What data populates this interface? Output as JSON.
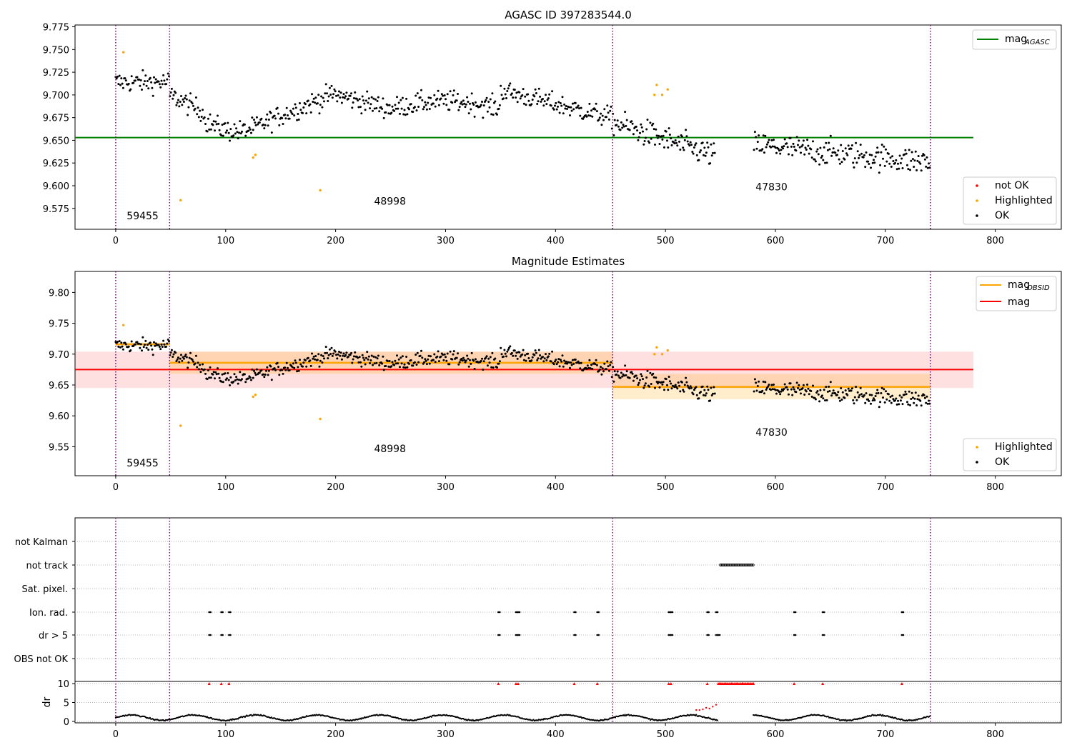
{
  "figure": {
    "title_top": "AGASC ID 397283544.0",
    "title_mid": "Magnitude Estimates"
  },
  "colors": {
    "ok": "#000000",
    "highlighted": "#ffa500",
    "not_ok": "#ff0000",
    "mag_agasc": "#008000",
    "mag": "#ff0000",
    "mag_obsid": "#ffa500",
    "obs_boundary": "#800080",
    "grid": "#b0b0b0"
  },
  "chart_data": [
    {
      "type": "scatter",
      "title": "AGASC ID 397283544.0",
      "xlim": [
        -37,
        860
      ],
      "ylim": [
        9.552,
        9.777
      ],
      "xticks": [
        "0",
        "100",
        "200",
        "300",
        "400",
        "500",
        "600",
        "700",
        "800"
      ],
      "yticks": [
        "9.575",
        "9.600",
        "9.625",
        "9.650",
        "9.675",
        "9.700",
        "9.725",
        "9.750",
        "9.775"
      ],
      "obs_boundaries": [
        0,
        49,
        452,
        741
      ],
      "obsid_labels": [
        {
          "text": "59455",
          "x": 10,
          "y": 9.563
        },
        {
          "text": "48998",
          "x": 235,
          "y": 9.579
        },
        {
          "text": "47830",
          "x": 582,
          "y": 9.595
        }
      ],
      "hlines": [
        {
          "name": "mag_AGASC",
          "y": 9.653,
          "x": [
            -37,
            780
          ]
        }
      ],
      "highlighted": [
        [
          7,
          9.747
        ],
        [
          59,
          9.584
        ],
        [
          125,
          9.631
        ],
        [
          127,
          9.634
        ],
        [
          186,
          9.595
        ],
        [
          490,
          9.7
        ],
        [
          492,
          9.711
        ],
        [
          497,
          9.7
        ],
        [
          502,
          9.706
        ]
      ],
      "legend_lines": [
        "mag",
        "AGASC"
      ],
      "legend_points": [
        "not OK",
        "Highlighted",
        "OK"
      ]
    },
    {
      "type": "scatter",
      "title": "Magnitude Estimates",
      "xlim": [
        -37,
        860
      ],
      "ylim": [
        9.503,
        9.834
      ],
      "xticks": [
        "0",
        "100",
        "200",
        "300",
        "400",
        "500",
        "600",
        "700",
        "800"
      ],
      "yticks": [
        "9.55",
        "9.60",
        "9.65",
        "9.70",
        "9.75",
        "9.80"
      ],
      "obs_boundaries": [
        0,
        49,
        452,
        741
      ],
      "obsid_labels": [
        {
          "text": "59455",
          "x": 10,
          "y": 9.518
        },
        {
          "text": "48998",
          "x": 235,
          "y": 9.541
        },
        {
          "text": "47830",
          "x": 582,
          "y": 9.568
        }
      ],
      "mag": {
        "value": 9.675,
        "band": [
          9.645,
          9.704
        ],
        "x": [
          -37,
          780
        ]
      },
      "mag_obsid": [
        {
          "x": [
            0,
            49
          ],
          "value": 9.716,
          "band": [
            9.713,
            9.719
          ]
        },
        {
          "x": [
            49,
            452
          ],
          "value": 9.686,
          "band": [
            9.668,
            9.704
          ]
        },
        {
          "x": [
            452,
            741
          ],
          "value": 9.647,
          "band": [
            9.627,
            9.668
          ]
        }
      ],
      "legend_lines": [
        "mag",
        "OBSID",
        "mag"
      ],
      "legend_points": [
        "Highlighted",
        "OK"
      ]
    },
    {
      "type": "scatter",
      "xlim": [
        -37,
        860
      ],
      "xticks": [
        "0",
        "100",
        "200",
        "300",
        "400",
        "500",
        "600",
        "700",
        "800"
      ],
      "flag_rows": [
        "not Kalman",
        "not track",
        "Sat. pixel.",
        "Ion. rad.",
        "dr > 5",
        "OBS not OK"
      ],
      "flags": {
        "not track": [
          [
            550,
            580
          ]
        ],
        "Ion. rad.": [
          85,
          96,
          103,
          348,
          364,
          366,
          417,
          438,
          503,
          505,
          538,
          546,
          617,
          643,
          715
        ],
        "dr > 5": [
          85,
          96,
          103,
          348,
          364,
          366,
          417,
          438,
          503,
          505,
          538,
          546,
          548,
          617,
          643,
          715
        ]
      },
      "dr_ylim": [
        0,
        10
      ],
      "dr_yticks": [
        "0",
        "5",
        "10"
      ],
      "dr_ylabel": "dr",
      "dr_high_x": [
        85,
        96,
        103,
        348,
        364,
        366,
        417,
        438,
        503,
        505,
        538,
        548,
        550,
        555,
        560,
        565,
        570,
        575,
        580,
        617,
        643,
        715
      ],
      "dr_mid_red": [
        [
          528,
          3.0
        ],
        [
          531,
          3.0
        ],
        [
          534,
          3.2
        ],
        [
          537,
          3.6
        ],
        [
          540,
          3.4
        ],
        [
          543,
          3.9
        ],
        [
          546,
          4.4
        ]
      ]
    }
  ]
}
